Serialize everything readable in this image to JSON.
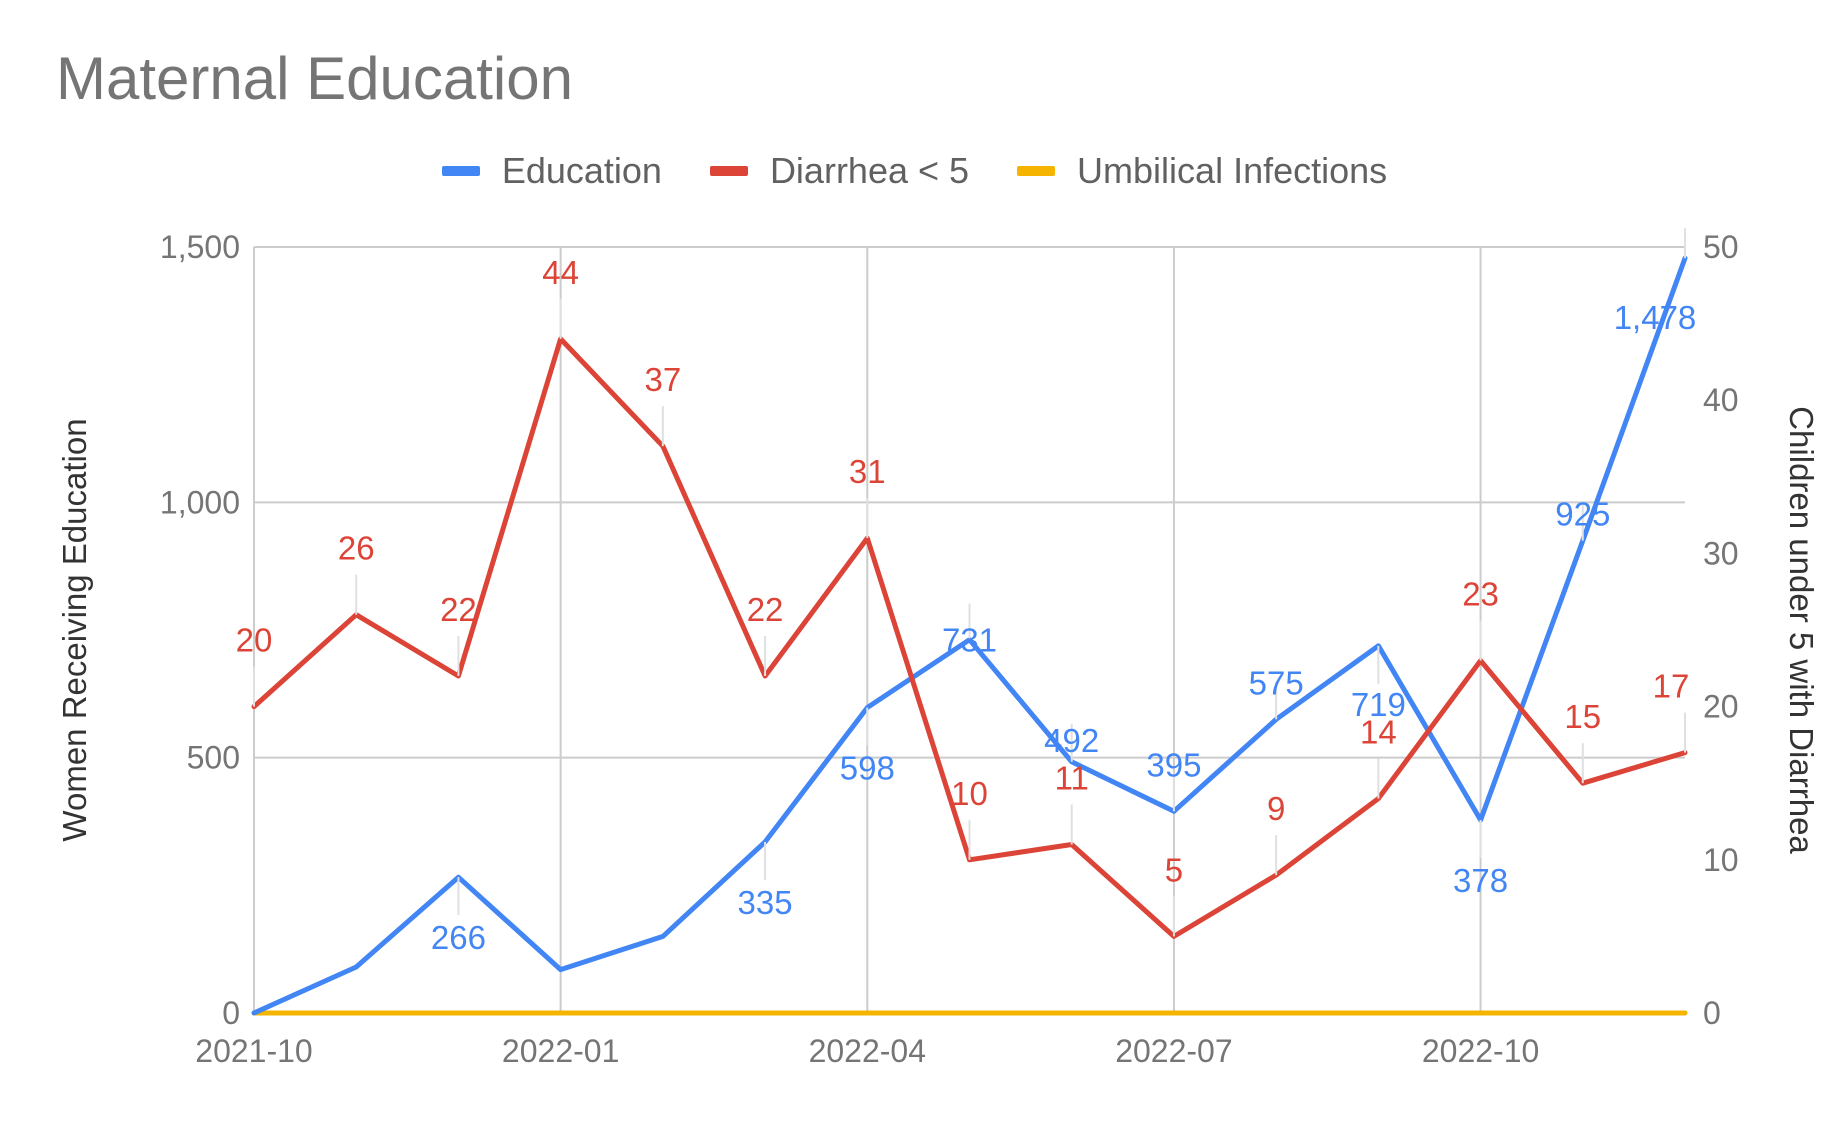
{
  "chart_data": {
    "type": "line",
    "title": "Maternal Education",
    "x": [
      "2021-10",
      "2021-11",
      "2021-12",
      "2022-01",
      "2022-02",
      "2022-03",
      "2022-04",
      "2022-05",
      "2022-06",
      "2022-07",
      "2022-08",
      "2022-09",
      "2022-10",
      "2022-11",
      "2022-12"
    ],
    "x_tick_labels": [
      "2021-10",
      "2022-01",
      "2022-04",
      "2022-07",
      "2022-10"
    ],
    "ylabel_left": "Women Receiving Education",
    "ylabel_right": "Children under 5 with Diarrhea",
    "ylim_left": [
      0,
      1500
    ],
    "ylim_right": [
      0,
      50
    ],
    "yticks_left": [
      "0",
      "500",
      "1,000",
      "1,500"
    ],
    "yticks_right": [
      "0",
      "10",
      "20",
      "30",
      "40",
      "50"
    ],
    "grid": true,
    "legend_position": "top",
    "series": [
      {
        "name": "Education",
        "axis": "left",
        "color": "#4285f4",
        "values": [
          0,
          90,
          266,
          85,
          150,
          335,
          598,
          731,
          492,
          395,
          575,
          719,
          378,
          925,
          1478
        ],
        "labels": [
          null,
          null,
          "266",
          null,
          null,
          "335",
          "598",
          "731",
          "492",
          "395",
          "575",
          "719",
          "378",
          "925",
          "1,478"
        ]
      },
      {
        "name": "Diarrhea < 5",
        "axis": "right",
        "color": "#db4437",
        "values": [
          20,
          26,
          22,
          44,
          37,
          22,
          31,
          10,
          11,
          5,
          9,
          14,
          23,
          15,
          17
        ],
        "labels": [
          "20",
          "26",
          "22",
          "44",
          "37",
          "22",
          "31",
          "10",
          "11",
          "5",
          "9",
          "14",
          "23",
          "15",
          "17"
        ]
      },
      {
        "name": "Umbilical Infections",
        "axis": "right",
        "color": "#f4b400",
        "values": [
          0,
          0,
          0,
          0,
          0,
          0,
          0,
          0,
          0,
          0,
          0,
          0,
          0,
          0,
          0
        ],
        "labels": []
      }
    ]
  }
}
